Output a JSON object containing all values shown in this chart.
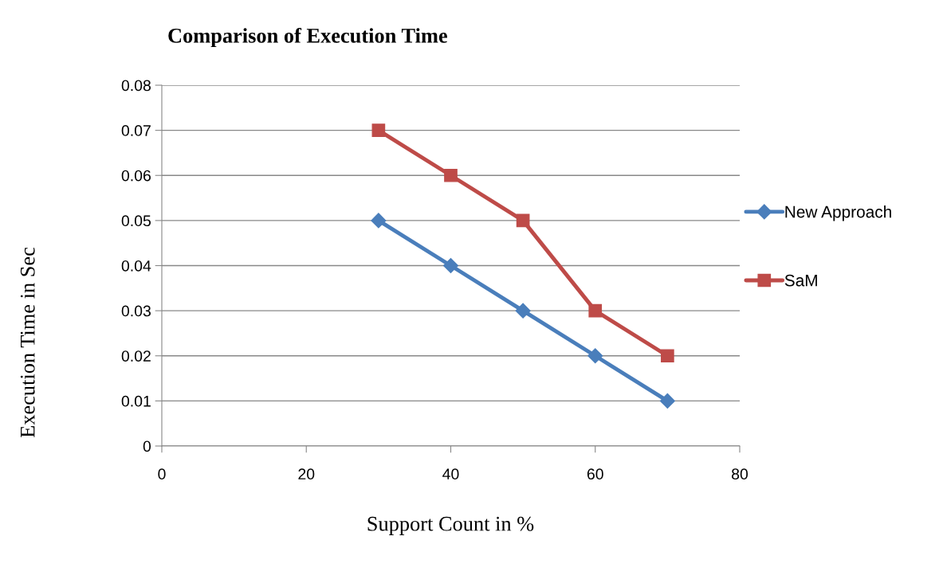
{
  "chart_data": {
    "type": "line",
    "title": "Comparison of Execution Time",
    "xlabel": "Support Count in %",
    "ylabel": "Execution Time in Sec",
    "x": [
      30,
      40,
      50,
      60,
      70
    ],
    "series": [
      {
        "name": "New Approach",
        "color": "#4a7ebb",
        "marker": "diamond",
        "values": [
          0.05,
          0.04,
          0.03,
          0.02,
          0.01
        ]
      },
      {
        "name": "SaM",
        "color": "#be4b48",
        "marker": "square",
        "values": [
          0.07,
          0.06,
          0.05,
          0.03,
          0.02
        ]
      }
    ],
    "xlim": [
      0,
      80
    ],
    "xticks": [
      0,
      20,
      40,
      60,
      80
    ],
    "ylim": [
      0,
      0.08
    ],
    "yticks": [
      {
        "value": 0,
        "label": "0"
      },
      0.01,
      0.02,
      0.03,
      0.04,
      0.05,
      0.06,
      0.07,
      0.08
    ],
    "grid": "y",
    "legend": "right",
    "line_style": "solid"
  }
}
